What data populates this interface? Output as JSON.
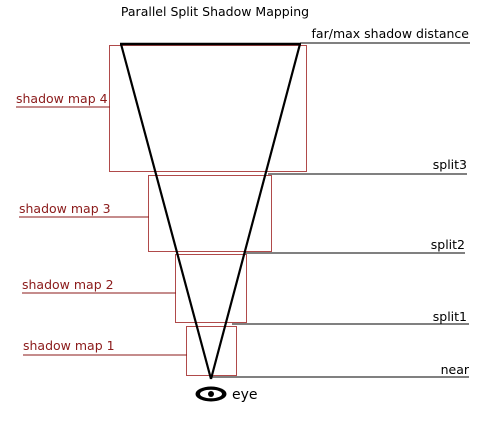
{
  "title": "Parallel Split Shadow Mapping",
  "planes": {
    "far": "far/max shadow distance",
    "split3": "split3",
    "split2": "split2",
    "split1": "split1",
    "near": "near"
  },
  "shadow_maps": {
    "map4": "shadow map 4",
    "map3": "shadow map 3",
    "map2": "shadow map 2",
    "map1": "shadow map 1"
  },
  "eye": {
    "label": "eye",
    "icon": "eye-icon"
  },
  "colors": {
    "frustum": "#000000",
    "plane_line": "#000000",
    "shadow_map_box": "#b04a4a",
    "shadow_map_label": "#8b1a1a",
    "text": "#000000"
  }
}
